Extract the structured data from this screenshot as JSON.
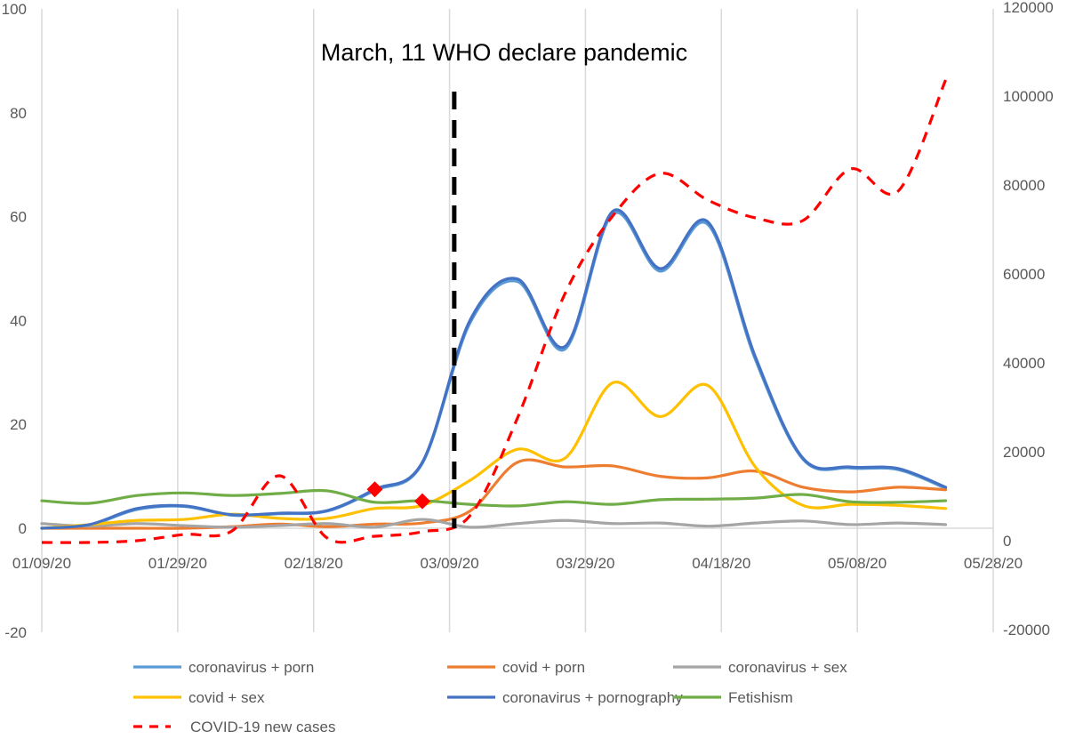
{
  "chart_data": {
    "type": "line",
    "title": "",
    "annotation": {
      "text": "March, 11 WHO declare pandemic",
      "date": "03/11/20",
      "line_color": "#000000",
      "line_style": "dashed"
    },
    "xlabel": "",
    "ylabel": "",
    "y2label": "",
    "x_ticks": [
      "01/09/20",
      "01/29/20",
      "02/18/20",
      "03/09/20",
      "03/29/20",
      "04/18/20",
      "05/08/20",
      "05/28/20"
    ],
    "x_range": [
      "01/09/20",
      "05/28/20"
    ],
    "ylim": [
      -20,
      100
    ],
    "y_ticks": [
      -20,
      0,
      20,
      40,
      60,
      80,
      100
    ],
    "y2lim": [
      -20000,
      120000
    ],
    "y2_ticks": [
      -20000,
      0,
      20000,
      40000,
      60000,
      80000,
      100000,
      120000
    ],
    "grid": "vertical",
    "legend_position": "bottom",
    "x": [
      "01/09/20",
      "01/16/20",
      "01/23/20",
      "01/30/20",
      "02/06/20",
      "02/13/20",
      "02/20/20",
      "02/27/20",
      "03/05/20",
      "03/12/20",
      "03/19/20",
      "03/26/20",
      "04/02/20",
      "04/09/20",
      "04/16/20",
      "04/23/20",
      "04/30/20",
      "05/07/20",
      "05/14/20",
      "05/21/20"
    ],
    "series": [
      {
        "name": "coronavirus + porn",
        "axis": "left",
        "color": "#5B9BD5",
        "style": "solid",
        "values": [
          0,
          0.6,
          3.6,
          4.2,
          2.5,
          2.8,
          3.3,
          7.3,
          12.5,
          39.5,
          47.5,
          34.5,
          60.5,
          49.5,
          58.5,
          32.5,
          13.3,
          11.6,
          11.3,
          7.7
        ]
      },
      {
        "name": "covid + porn",
        "axis": "left",
        "color": "#ED7D31",
        "style": "solid",
        "values": [
          0,
          0,
          0,
          0,
          0.3,
          0.8,
          0.3,
          0.8,
          1,
          3.3,
          12.7,
          11.8,
          12,
          10,
          9.7,
          11,
          7.9,
          7,
          7.9,
          7.4
        ]
      },
      {
        "name": "coronavirus + sex",
        "axis": "left",
        "color": "#A5A5A5",
        "style": "solid",
        "values": [
          0.9,
          0.4,
          0.9,
          0.5,
          0.2,
          0.5,
          0.9,
          0.2,
          1.7,
          0.2,
          0.9,
          1.5,
          0.9,
          1,
          0.4,
          1,
          1.4,
          0.7,
          1,
          0.7
        ]
      },
      {
        "name": "covid + sex",
        "axis": "left",
        "color": "#FFC000",
        "style": "solid",
        "values": [
          0,
          0.7,
          1.5,
          1.7,
          2.7,
          1.9,
          1.9,
          3.8,
          4.4,
          9.2,
          15.2,
          13.5,
          28,
          21.5,
          27.5,
          11.8,
          4.4,
          4.6,
          4.4,
          3.8
        ]
      },
      {
        "name": "coronavirus + pornography",
        "axis": "left",
        "color": "#4472C4",
        "style": "solid",
        "values": [
          0,
          0.7,
          3.8,
          4.3,
          2.6,
          2.9,
          3.4,
          7.5,
          12.7,
          40,
          48,
          35,
          61,
          50,
          59,
          33,
          13.5,
          11.8,
          11.5,
          7.9
        ]
      },
      {
        "name": "Fetishism",
        "axis": "left",
        "color": "#70AD47",
        "style": "solid",
        "values": [
          5.3,
          4.8,
          6.3,
          6.8,
          6.3,
          6.7,
          7.2,
          5,
          5.3,
          4.6,
          4.3,
          5.1,
          4.6,
          5.5,
          5.6,
          5.8,
          6.5,
          5.1,
          5,
          5.3
        ]
      },
      {
        "name": "COVID-19 new cases",
        "axis": "right",
        "color": "#FF0000",
        "style": "dashed",
        "values": [
          0,
          0,
          400,
          1800,
          2600,
          15000,
          1000,
          1400,
          2400,
          6000,
          28000,
          56000,
          73400,
          83000,
          77000,
          73000,
          72400,
          84000,
          79000,
          104000
        ]
      }
    ],
    "markers": [
      {
        "date": "02/27/20",
        "value": 7.5,
        "shape": "diamond",
        "color": "#FF0000"
      },
      {
        "date": "03/05/20",
        "value": 5.2,
        "shape": "diamond",
        "color": "#FF0000"
      }
    ]
  }
}
